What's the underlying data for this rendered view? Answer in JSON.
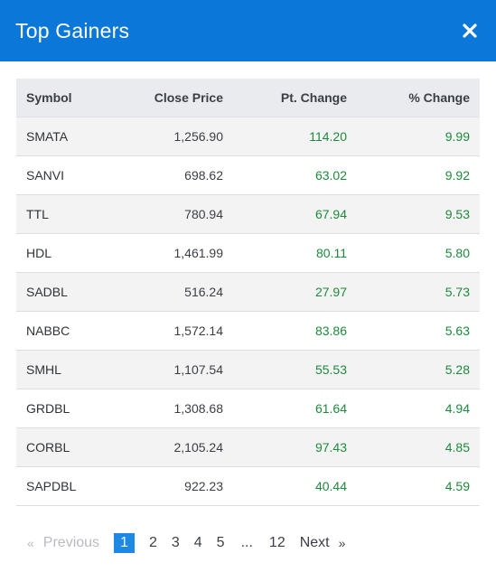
{
  "header": {
    "title": "Top Gainers",
    "close_icon": "close-icon"
  },
  "table": {
    "columns": [
      "Symbol",
      "Close Price",
      "Pt. Change",
      "% Change"
    ],
    "rows": [
      {
        "symbol": "SMATA",
        "close": "1,256.90",
        "pt": "114.20",
        "pct": "9.99"
      },
      {
        "symbol": "SANVI",
        "close": "698.62",
        "pt": "63.02",
        "pct": "9.92"
      },
      {
        "symbol": "TTL",
        "close": "780.94",
        "pt": "67.94",
        "pct": "9.53"
      },
      {
        "symbol": "HDL",
        "close": "1,461.99",
        "pt": "80.11",
        "pct": "5.80"
      },
      {
        "symbol": "SADBL",
        "close": "516.24",
        "pt": "27.97",
        "pct": "5.73"
      },
      {
        "symbol": "NABBC",
        "close": "1,572.14",
        "pt": "83.86",
        "pct": "5.63"
      },
      {
        "symbol": "SMHL",
        "close": "1,107.54",
        "pt": "55.53",
        "pct": "5.28"
      },
      {
        "symbol": "GRDBL",
        "close": "1,308.68",
        "pt": "61.64",
        "pct": "4.94"
      },
      {
        "symbol": "CORBL",
        "close": "2,105.24",
        "pt": "97.43",
        "pct": "4.85"
      },
      {
        "symbol": "SAPDBL",
        "close": "922.23",
        "pt": "40.44",
        "pct": "4.59"
      }
    ]
  },
  "pagination": {
    "prev_quote": "«",
    "previous": "Previous",
    "pages": [
      "1",
      "2",
      "3",
      "4",
      "5"
    ],
    "active": "1",
    "ellipsis": "...",
    "last": "12",
    "next": "Next",
    "next_quote": "»"
  },
  "colors": {
    "header_bg": "#0b77d8",
    "positive": "#1d8a3b",
    "active_page": "#1e88e5"
  }
}
